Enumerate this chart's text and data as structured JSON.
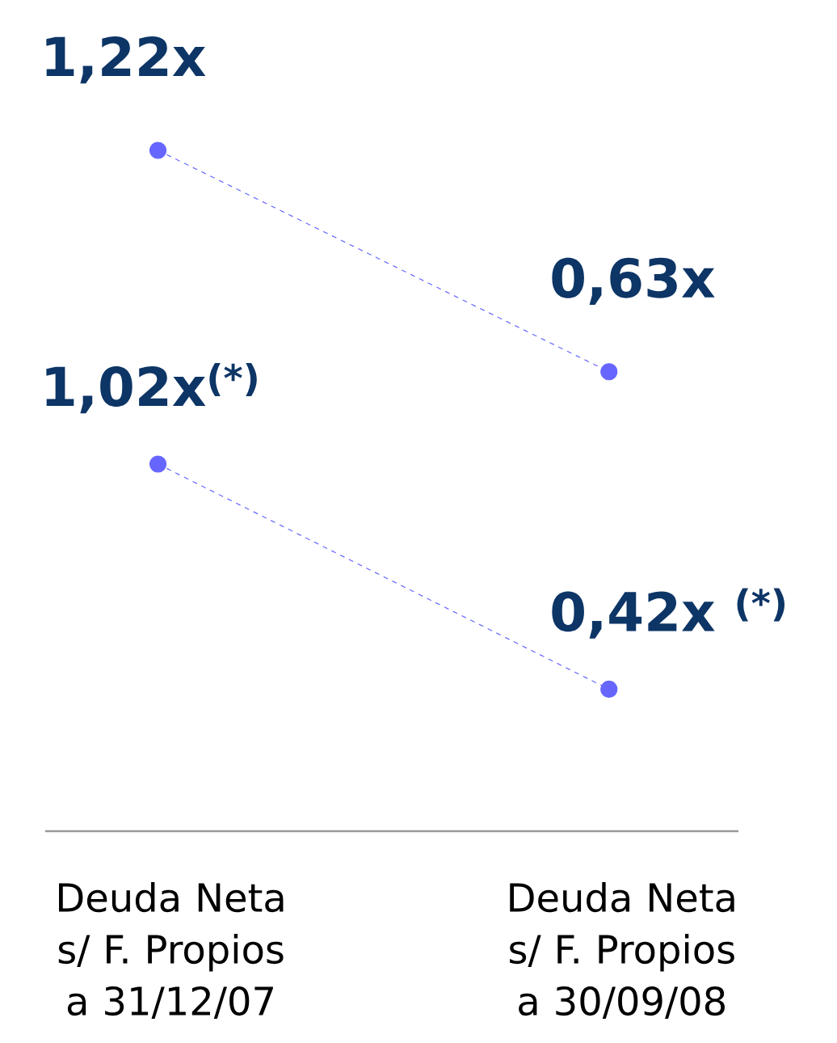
{
  "chart_data": [
    {
      "type": "line",
      "categories": [
        null,
        null
      ],
      "series": [
        {
          "color": "#6666ff",
          "values": [
            1.22,
            0.63
          ],
          "value_labels": [
            "1,22x",
            "0,63x"
          ]
        }
      ],
      "marker": "circle",
      "line_style": "dashed"
    },
    {
      "type": "line",
      "categories": [
        "Deuda Neta s/ F. Propios a 31/12/07",
        "Deuda Neta s/ F. Propios a 30/09/08"
      ],
      "series": [
        {
          "color": "#6666ff",
          "values": [
            1.02,
            0.42
          ],
          "value_labels": [
            "1,02x$^{(*)}$",
            "0,42x $^{(*)}$"
          ]
        }
      ],
      "marker": "circle",
      "line_style": "dashed"
    }
  ]
}
